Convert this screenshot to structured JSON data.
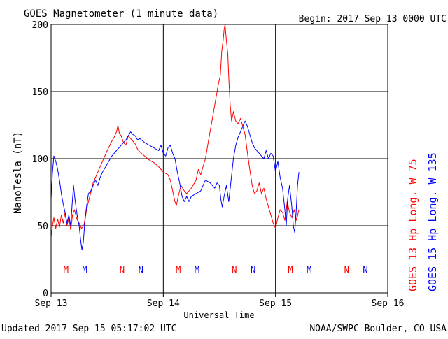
{
  "header": {
    "title": "GOES Magnetometer (1 minute data)",
    "begin": "Begin:  2017 Sep 13 0000 UTC"
  },
  "footer": {
    "updated": "Updated 2017 Sep 15 05:17:02 UTC",
    "credit": "NOAA/SWPC Boulder, CO USA"
  },
  "colors": {
    "goes13": "#ff0000",
    "goes15": "#0000ff",
    "axis": "#000000",
    "background": "#ffffff"
  },
  "chart_data": {
    "type": "line",
    "title": "GOES Magnetometer (1 minute data)",
    "xlabel": "Universal Time",
    "ylabel": "NanoTesla (nT)",
    "x_unit": "hours since 2017 Sep 13 0000 UTC",
    "xlim": [
      0,
      72
    ],
    "ylim": [
      0,
      200
    ],
    "yticks": [
      0,
      50,
      100,
      150,
      200
    ],
    "xticks": [
      {
        "x": 0,
        "label": "Sep 13"
      },
      {
        "x": 24,
        "label": "Sep 14"
      },
      {
        "x": 48,
        "label": "Sep 15"
      },
      {
        "x": 72,
        "label": "Sep 16"
      }
    ],
    "grid": true,
    "legend_position": "right",
    "series": [
      {
        "name": "GOES 13 Hp  Long. W 75",
        "color": "#ff0000",
        "points": [
          [
            0.0,
            42
          ],
          [
            0.3,
            50
          ],
          [
            0.6,
            56
          ],
          [
            1.0,
            48
          ],
          [
            1.4,
            55
          ],
          [
            1.8,
            49
          ],
          [
            2.2,
            58
          ],
          [
            2.6,
            52
          ],
          [
            3.0,
            60
          ],
          [
            3.4,
            50
          ],
          [
            3.8,
            56
          ],
          [
            4.2,
            47
          ],
          [
            4.6,
            58
          ],
          [
            5.0,
            62
          ],
          [
            5.5,
            55
          ],
          [
            6.0,
            52
          ],
          [
            6.5,
            48
          ],
          [
            7.0,
            50
          ],
          [
            7.5,
            60
          ],
          [
            8.0,
            68
          ],
          [
            8.5,
            75
          ],
          [
            9.0,
            82
          ],
          [
            10.0,
            90
          ],
          [
            11.0,
            98
          ],
          [
            12.0,
            106
          ],
          [
            13.0,
            113
          ],
          [
            13.5,
            116
          ],
          [
            14.0,
            120
          ],
          [
            14.3,
            125
          ],
          [
            14.6,
            119
          ],
          [
            15.0,
            117
          ],
          [
            15.5,
            112
          ],
          [
            16.0,
            110
          ],
          [
            16.5,
            117
          ],
          [
            17.0,
            115
          ],
          [
            17.5,
            113
          ],
          [
            18.0,
            111
          ],
          [
            18.5,
            107
          ],
          [
            19.0,
            105
          ],
          [
            20.0,
            102
          ],
          [
            21.0,
            99
          ],
          [
            22.0,
            97
          ],
          [
            23.0,
            94
          ],
          [
            24.0,
            90
          ],
          [
            25.0,
            88
          ],
          [
            25.5,
            84
          ],
          [
            26.0,
            76
          ],
          [
            26.5,
            68
          ],
          [
            26.8,
            65
          ],
          [
            27.2,
            72
          ],
          [
            27.8,
            80
          ],
          [
            28.5,
            76
          ],
          [
            29.0,
            74
          ],
          [
            30.0,
            78
          ],
          [
            31.0,
            84
          ],
          [
            31.5,
            92
          ],
          [
            32.0,
            88
          ],
          [
            32.5,
            94
          ],
          [
            33.0,
            100
          ],
          [
            33.5,
            110
          ],
          [
            34.0,
            120
          ],
          [
            34.5,
            130
          ],
          [
            35.0,
            140
          ],
          [
            35.5,
            150
          ],
          [
            35.8,
            156
          ],
          [
            36.2,
            162
          ],
          [
            36.5,
            180
          ],
          [
            36.8,
            188
          ],
          [
            37.0,
            196
          ],
          [
            37.2,
            200
          ],
          [
            37.5,
            188
          ],
          [
            37.8,
            178
          ],
          [
            38.0,
            160
          ],
          [
            38.3,
            140
          ],
          [
            38.6,
            128
          ],
          [
            39.0,
            135
          ],
          [
            39.5,
            128
          ],
          [
            40.0,
            126
          ],
          [
            40.5,
            130
          ],
          [
            41.0,
            124
          ],
          [
            41.5,
            118
          ],
          [
            42.0,
            104
          ],
          [
            42.5,
            92
          ],
          [
            43.0,
            80
          ],
          [
            43.5,
            74
          ],
          [
            44.0,
            76
          ],
          [
            44.5,
            82
          ],
          [
            45.0,
            74
          ],
          [
            45.5,
            78
          ],
          [
            46.0,
            70
          ],
          [
            46.5,
            64
          ],
          [
            47.0,
            58
          ],
          [
            47.5,
            52
          ],
          [
            48.0,
            48
          ],
          [
            48.5,
            56
          ],
          [
            49.0,
            62
          ],
          [
            49.5,
            60
          ],
          [
            50.0,
            54
          ],
          [
            50.5,
            68
          ],
          [
            51.0,
            60
          ],
          [
            51.5,
            56
          ],
          [
            52.0,
            62
          ],
          [
            52.5,
            54
          ],
          [
            53.0,
            62
          ]
        ]
      },
      {
        "name": "GOES 15 Hp  Long. W 135",
        "color": "#0000ff",
        "points": [
          [
            0.0,
            70
          ],
          [
            0.3,
            90
          ],
          [
            0.6,
            102
          ],
          [
            1.0,
            98
          ],
          [
            1.4,
            92
          ],
          [
            1.8,
            84
          ],
          [
            2.2,
            74
          ],
          [
            2.6,
            66
          ],
          [
            3.0,
            60
          ],
          [
            3.4,
            52
          ],
          [
            3.8,
            58
          ],
          [
            4.2,
            50
          ],
          [
            4.5,
            66
          ],
          [
            4.8,
            80
          ],
          [
            5.1,
            70
          ],
          [
            5.4,
            62
          ],
          [
            5.7,
            55
          ],
          [
            6.0,
            50
          ],
          [
            6.3,
            40
          ],
          [
            6.6,
            32
          ],
          [
            6.9,
            38
          ],
          [
            7.2,
            52
          ],
          [
            7.5,
            62
          ],
          [
            8.0,
            74
          ],
          [
            8.5,
            76
          ],
          [
            9.0,
            80
          ],
          [
            9.5,
            84
          ],
          [
            10.0,
            80
          ],
          [
            10.5,
            86
          ],
          [
            11.0,
            90
          ],
          [
            12.0,
            96
          ],
          [
            13.0,
            102
          ],
          [
            14.0,
            106
          ],
          [
            15.0,
            110
          ],
          [
            16.0,
            114
          ],
          [
            16.5,
            117
          ],
          [
            17.0,
            120
          ],
          [
            17.5,
            118
          ],
          [
            18.0,
            117
          ],
          [
            18.5,
            114
          ],
          [
            19.0,
            115
          ],
          [
            20.0,
            112
          ],
          [
            21.0,
            110
          ],
          [
            22.0,
            108
          ],
          [
            23.0,
            106
          ],
          [
            23.5,
            110
          ],
          [
            24.0,
            104
          ],
          [
            24.5,
            102
          ],
          [
            25.0,
            108
          ],
          [
            25.5,
            110
          ],
          [
            26.0,
            104
          ],
          [
            26.5,
            100
          ],
          [
            27.0,
            90
          ],
          [
            27.5,
            82
          ],
          [
            28.0,
            72
          ],
          [
            28.5,
            68
          ],
          [
            29.0,
            72
          ],
          [
            29.5,
            68
          ],
          [
            30.0,
            72
          ],
          [
            31.0,
            74
          ],
          [
            32.0,
            76
          ],
          [
            32.5,
            80
          ],
          [
            33.0,
            84
          ],
          [
            34.0,
            82
          ],
          [
            35.0,
            78
          ],
          [
            35.5,
            82
          ],
          [
            36.0,
            80
          ],
          [
            36.3,
            70
          ],
          [
            36.6,
            64
          ],
          [
            37.0,
            72
          ],
          [
            37.5,
            80
          ],
          [
            38.0,
            68
          ],
          [
            38.5,
            84
          ],
          [
            39.0,
            100
          ],
          [
            39.5,
            110
          ],
          [
            40.0,
            116
          ],
          [
            40.5,
            120
          ],
          [
            41.0,
            124
          ],
          [
            41.5,
            128
          ],
          [
            42.0,
            124
          ],
          [
            42.5,
            118
          ],
          [
            43.0,
            112
          ],
          [
            43.5,
            108
          ],
          [
            44.0,
            106
          ],
          [
            44.5,
            104
          ],
          [
            45.0,
            102
          ],
          [
            45.5,
            100
          ],
          [
            46.0,
            106
          ],
          [
            46.5,
            100
          ],
          [
            47.0,
            104
          ],
          [
            47.5,
            102
          ],
          [
            48.0,
            90
          ],
          [
            48.5,
            98
          ],
          [
            49.0,
            86
          ],
          [
            49.5,
            78
          ],
          [
            50.0,
            62
          ],
          [
            50.3,
            50
          ],
          [
            50.6,
            70
          ],
          [
            51.0,
            80
          ],
          [
            51.5,
            64
          ],
          [
            51.8,
            50
          ],
          [
            52.1,
            45
          ],
          [
            52.4,
            60
          ],
          [
            52.7,
            80
          ],
          [
            53.0,
            90
          ]
        ]
      }
    ],
    "annotations": [
      {
        "x": 3.2,
        "text": "M",
        "series": "GOES 13 Hp  Long. W 75"
      },
      {
        "x": 7.2,
        "text": "M",
        "series": "GOES 15 Hp  Long. W 135"
      },
      {
        "x": 15.2,
        "text": "N",
        "series": "GOES 13 Hp  Long. W 75"
      },
      {
        "x": 19.2,
        "text": "N",
        "series": "GOES 15 Hp  Long. W 135"
      },
      {
        "x": 27.2,
        "text": "M",
        "series": "GOES 13 Hp  Long. W 75"
      },
      {
        "x": 31.2,
        "text": "M",
        "series": "GOES 15 Hp  Long. W 135"
      },
      {
        "x": 39.2,
        "text": "N",
        "series": "GOES 13 Hp  Long. W 75"
      },
      {
        "x": 43.2,
        "text": "N",
        "series": "GOES 15 Hp  Long. W 135"
      },
      {
        "x": 51.2,
        "text": "M",
        "series": "GOES 13 Hp  Long. W 75"
      },
      {
        "x": 55.2,
        "text": "M",
        "series": "GOES 15 Hp  Long. W 135"
      },
      {
        "x": 63.2,
        "text": "N",
        "series": "GOES 13 Hp  Long. W 75"
      },
      {
        "x": 67.2,
        "text": "N",
        "series": "GOES 15 Hp  Long. W 135"
      }
    ]
  }
}
